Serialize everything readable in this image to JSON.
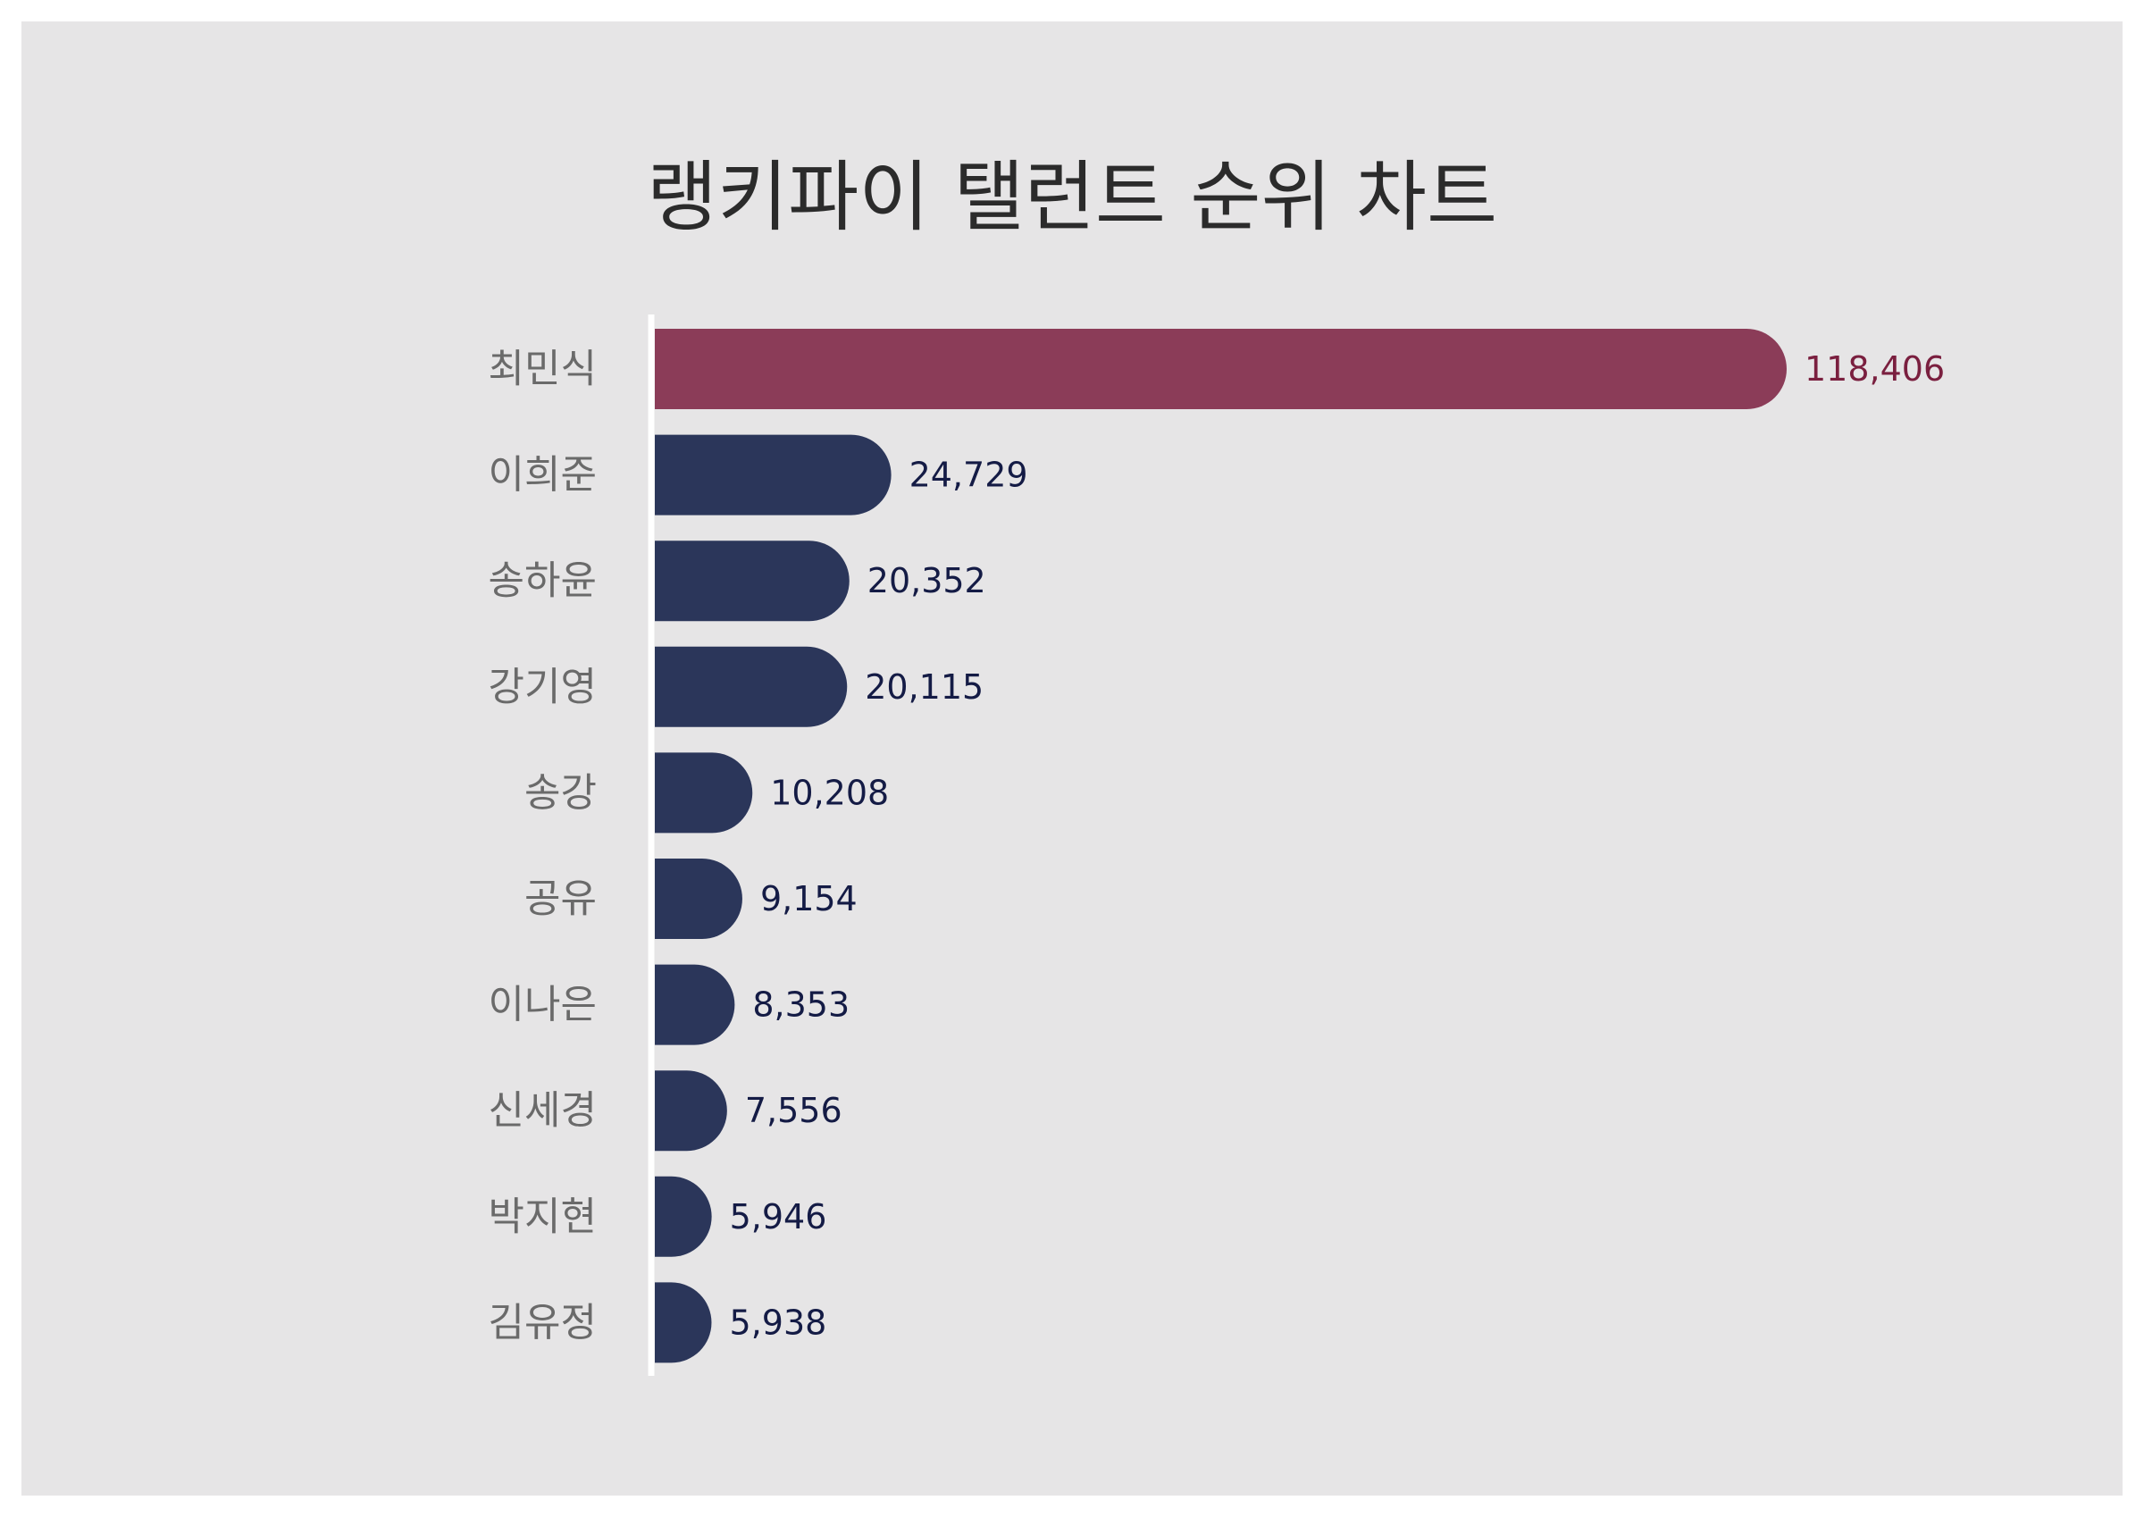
{
  "chart_data": {
    "type": "bar",
    "orientation": "horizontal",
    "title": "랭키파이 탤런트 순위 차트",
    "xlabel": "",
    "ylabel": "",
    "categories": [
      "최민식",
      "이희준",
      "송하윤",
      "강기영",
      "송강",
      "공유",
      "이나은",
      "신세경",
      "박지현",
      "김유정"
    ],
    "values": [
      118406,
      24729,
      20352,
      20115,
      10208,
      9154,
      8353,
      7556,
      5946,
      5938
    ],
    "value_labels": [
      "118,406",
      "24,729",
      "20,352",
      "20,115",
      "10,208",
      "9,154",
      "8,353",
      "7,556",
      "5,946",
      "5,938"
    ],
    "highlight_index": 0,
    "xlim": [
      0,
      118406
    ],
    "grid": false,
    "legend": "none"
  },
  "colors": {
    "background": "#ffffff",
    "panel": "#e6e5e6",
    "bar": "#2b365a",
    "bar_highlight": "#8b3c58",
    "value_text": "#141b45",
    "value_text_highlight": "#7a1f3f",
    "category_text": "#6a6a6a",
    "title_text": "#2b2b2b",
    "axis_line": "#ffffff"
  }
}
